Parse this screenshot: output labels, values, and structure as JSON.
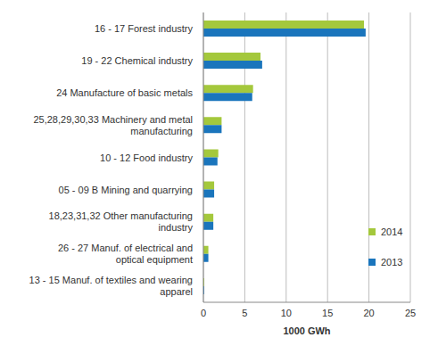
{
  "chart_data": {
    "type": "bar",
    "orientation": "horizontal",
    "categories": [
      "16 - 17 Forest industry",
      "19 - 22 Chemical industry",
      "24 Manufacture of basic metals",
      "25,28,29,30,33 Machinery and metal manufacturing",
      "10 - 12 Food industry",
      "05 - 09 B Mining and quarrying",
      "18,23,31,32 Other manufacturing industry",
      "26 - 27 Manuf. of electrical and optical equipment",
      "13 - 15 Manuf. of textiles and wearing apparel"
    ],
    "series": [
      {
        "name": "2014",
        "color": "#a4c83c",
        "values": [
          19.4,
          6.9,
          6.0,
          2.2,
          1.8,
          1.3,
          1.2,
          0.6,
          0.1
        ]
      },
      {
        "name": "2013",
        "color": "#1a75bc",
        "values": [
          19.6,
          7.1,
          5.9,
          2.2,
          1.7,
          1.3,
          1.2,
          0.6,
          0.1
        ]
      }
    ],
    "x_label": "1000 GWh",
    "xlim": [
      0,
      25
    ],
    "xticks": [
      0,
      5,
      10,
      15,
      20,
      25
    ],
    "grid": true,
    "legend": "right"
  }
}
